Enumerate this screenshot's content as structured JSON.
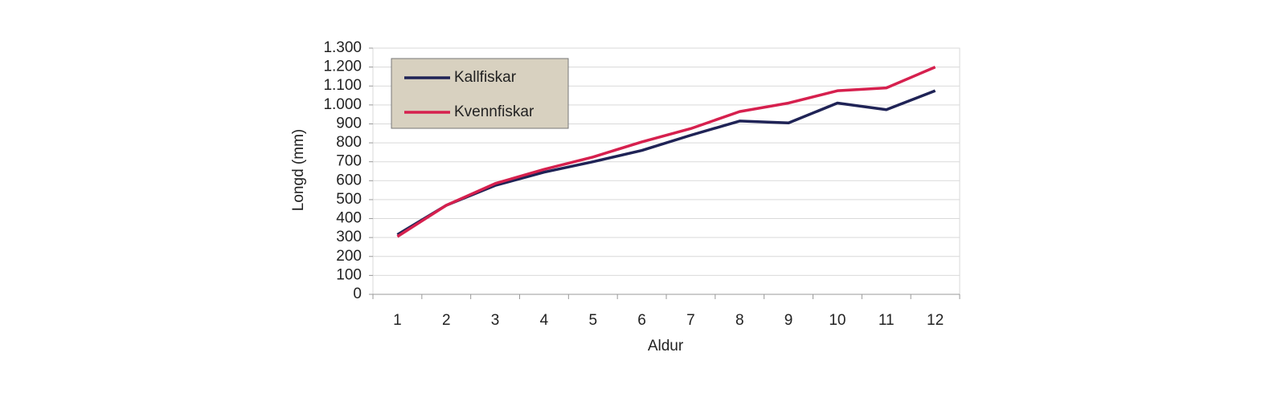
{
  "chart_data": {
    "type": "line",
    "xlabel": "Aldur",
    "ylabel": "Longd (mm)",
    "categories": [
      "1",
      "2",
      "3",
      "4",
      "5",
      "6",
      "7",
      "8",
      "9",
      "10",
      "11",
      "12"
    ],
    "series": [
      {
        "name": "Kallfiskar",
        "color": "#1f2356",
        "values": [
          315,
          470,
          575,
          645,
          700,
          760,
          840,
          915,
          905,
          1010,
          975,
          1075
        ]
      },
      {
        "name": "Kvennfiskar",
        "color": "#d6204e",
        "values": [
          305,
          470,
          585,
          660,
          725,
          805,
          875,
          965,
          1010,
          1075,
          1090,
          1200
        ]
      }
    ],
    "ylim": [
      0,
      1300
    ],
    "yticks": [
      0,
      100,
      200,
      300,
      400,
      500,
      600,
      700,
      800,
      900,
      {
        "value": 1000,
        "label": "1.000"
      },
      {
        "value": 1100,
        "label": "1.100"
      },
      {
        "value": 1200,
        "label": "1.200"
      },
      {
        "value": 1300,
        "label": "1.300"
      }
    ],
    "grid": true,
    "legend": "upper left"
  }
}
